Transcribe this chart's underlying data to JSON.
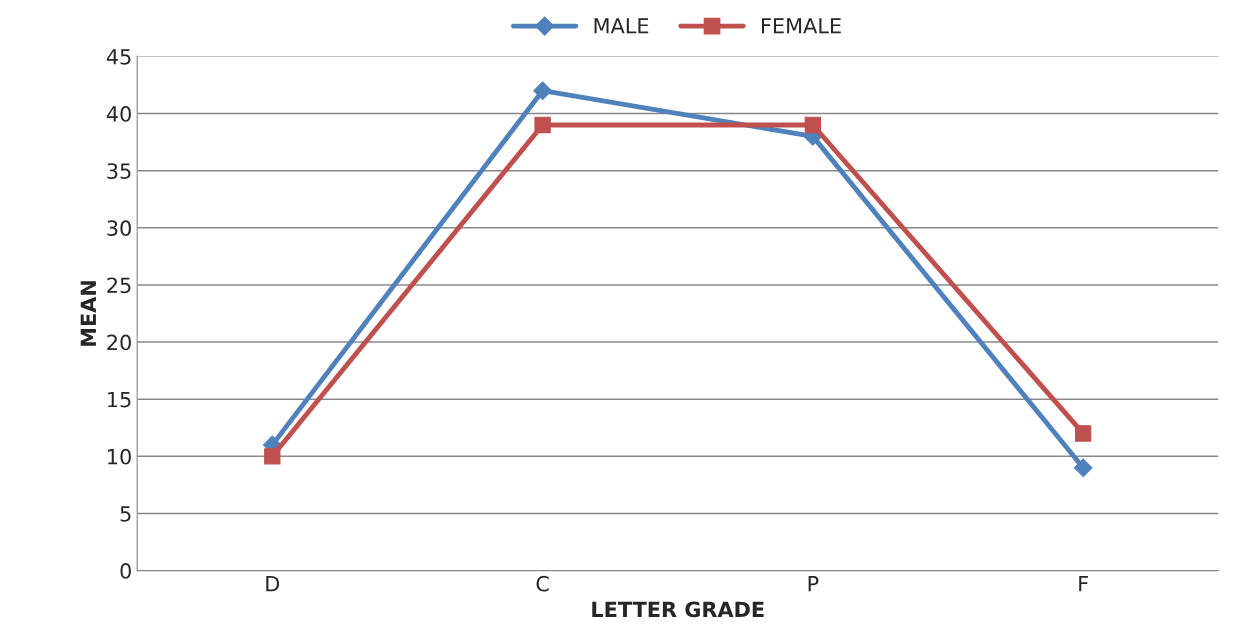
{
  "chart_data": {
    "type": "line",
    "xlabel": "LETTER GRADE",
    "ylabel": "MEAN",
    "categories": [
      "D",
      "C",
      "P",
      "F"
    ],
    "series": [
      {
        "name": "MALE",
        "color": "#4f81bd",
        "marker": "diamond",
        "values": [
          11,
          42,
          38,
          9
        ]
      },
      {
        "name": "FEMALE",
        "color": "#c0504d",
        "marker": "square",
        "values": [
          10,
          39,
          39,
          12
        ]
      }
    ],
    "ylim": [
      0,
      45
    ],
    "yticks": [
      0,
      5,
      10,
      15,
      20,
      25,
      30,
      35,
      40,
      45
    ],
    "grid": "y",
    "legend": "top",
    "line_style": "solid"
  }
}
